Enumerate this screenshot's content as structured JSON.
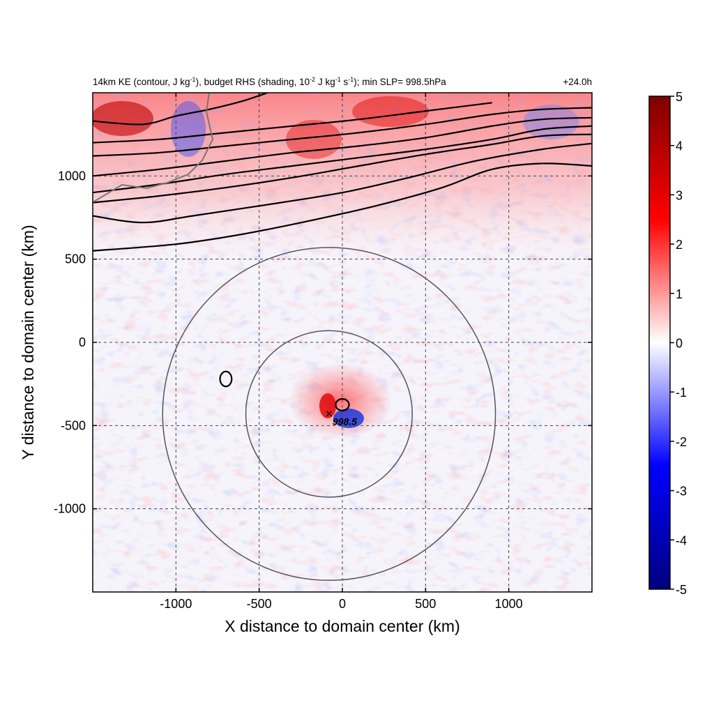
{
  "chart_data": {
    "type": "heatmap",
    "title_parts": [
      "14km KE (contour, J kg",
      "-1",
      "), budget RHS (shading, 10",
      "-2",
      " J kg",
      "-1",
      " s",
      "-1",
      "); min SLP= 998.5hPa"
    ],
    "title_right": "+24.0h",
    "xlabel": "X distance to domain center (km)",
    "ylabel": "Y distance to domain center (km)",
    "xlim": [
      -1500,
      1500
    ],
    "ylim": [
      -1500,
      1500
    ],
    "xticks": [
      -1000,
      -500,
      0,
      500,
      1000
    ],
    "yticks": [
      -1000,
      -500,
      0,
      500,
      1000
    ],
    "xtick_labels": [
      "-1000",
      "-500",
      "0",
      "500",
      "1000"
    ],
    "ytick_labels": [
      "-1000",
      "-500",
      "0",
      "500",
      "1000"
    ],
    "grid": "dashed at major ticks",
    "colorbar": {
      "min": -5,
      "max": 5,
      "ticks": [
        5,
        4,
        3,
        2,
        1,
        0,
        -1,
        -2,
        -3,
        -4,
        -5
      ],
      "tick_labels": [
        "5",
        "4",
        "3",
        "2",
        "1",
        "0",
        "-1",
        "-2",
        "-3",
        "-4",
        "-5"
      ],
      "colormap": [
        "#00007f",
        "#0000ff",
        "#ffffff",
        "#ff0000",
        "#7f0000"
      ],
      "placement": "right"
    },
    "storm_center": {
      "x": -80,
      "y": -430,
      "marker": "×"
    },
    "min_slp_label": "998.5",
    "range_rings_km": [
      500,
      1000
    ],
    "ke_contours": [
      [
        [
          -1500,
          550
        ],
        [
          -1000,
          590
        ],
        [
          -600,
          650
        ],
        [
          -200,
          730
        ],
        [
          200,
          820
        ],
        [
          600,
          930
        ],
        [
          900,
          1040
        ],
        [
          1200,
          1075
        ],
        [
          1500,
          1060
        ]
      ],
      [
        [
          -1500,
          760
        ],
        [
          -1200,
          720
        ],
        [
          -900,
          760
        ],
        [
          -500,
          820
        ],
        [
          0,
          900
        ],
        [
          400,
          990
        ],
        [
          800,
          1090
        ],
        [
          1200,
          1160
        ],
        [
          1500,
          1195
        ]
      ],
      [
        [
          -1500,
          840
        ],
        [
          -1100,
          880
        ],
        [
          -700,
          930
        ],
        [
          -300,
          990
        ],
        [
          100,
          1060
        ],
        [
          500,
          1130
        ],
        [
          900,
          1190
        ],
        [
          1200,
          1240
        ],
        [
          1500,
          1250
        ]
      ],
      [
        [
          -1500,
          900
        ],
        [
          -1100,
          950
        ],
        [
          -700,
          1010
        ],
        [
          -300,
          1060
        ],
        [
          100,
          1110
        ],
        [
          500,
          1160
        ],
        [
          900,
          1220
        ],
        [
          1200,
          1280
        ],
        [
          1500,
          1300
        ]
      ],
      [
        [
          -1500,
          1000
        ],
        [
          -1100,
          1040
        ],
        [
          -700,
          1090
        ],
        [
          -300,
          1140
        ],
        [
          100,
          1180
        ],
        [
          500,
          1230
        ],
        [
          900,
          1300
        ],
        [
          1200,
          1340
        ],
        [
          1500,
          1350
        ]
      ],
      [
        [
          -1500,
          1120
        ],
        [
          -1100,
          1140
        ],
        [
          -700,
          1180
        ],
        [
          -300,
          1220
        ],
        [
          100,
          1260
        ],
        [
          500,
          1310
        ],
        [
          900,
          1370
        ],
        [
          1200,
          1400
        ],
        [
          1500,
          1410
        ]
      ],
      [
        [
          -1500,
          1200
        ],
        [
          -1100,
          1220
        ],
        [
          -700,
          1260
        ],
        [
          -300,
          1300
        ],
        [
          100,
          1340
        ],
        [
          500,
          1390
        ],
        [
          900,
          1440
        ]
      ],
      [
        [
          -1500,
          1330
        ],
        [
          -1200,
          1310
        ],
        [
          -1000,
          1360
        ],
        [
          -800,
          1400
        ],
        [
          -600,
          1450
        ],
        [
          -450,
          1500
        ]
      ]
    ],
    "ke_closed_contours": [
      {
        "cx": -700,
        "cy": -220,
        "rx": 35,
        "ry": 45
      },
      {
        "cx": 0,
        "cy": -375,
        "rx": 40,
        "ry": 35
      }
    ]
  }
}
